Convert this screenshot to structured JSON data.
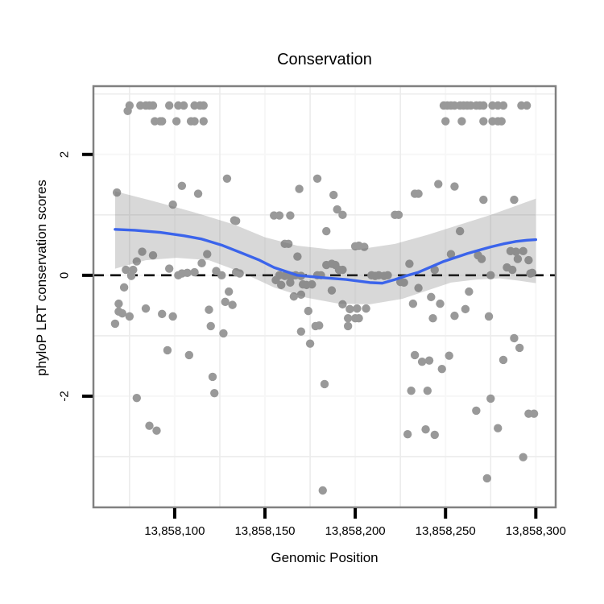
{
  "title": "Conservation",
  "x_axis": {
    "label": "Genomic Position",
    "ticks": [
      {
        "pos": 13858100,
        "label": "13,858,100"
      },
      {
        "pos": 13858150,
        "label": "13,858,150"
      },
      {
        "pos": 13858200,
        "label": "13,858,200"
      },
      {
        "pos": 13858250,
        "label": "13,858,250"
      },
      {
        "pos": 13858300,
        "label": "13,858,300"
      }
    ]
  },
  "y_axis": {
    "label": "phyloP LRT conservation scores",
    "ticks": [
      {
        "value": 2,
        "label": "2"
      },
      {
        "value": 0,
        "label": "0"
      },
      {
        "value": -2,
        "label": "-2"
      }
    ]
  },
  "colors": {
    "point": "#999999",
    "smooth_line": "#3B64EB",
    "confidence_band": "rgba(110,110,110,0.27)",
    "hline": "#000000",
    "panel_border": "#808080",
    "grid_major": "#f7f7f7",
    "grid_minor": "#ececec",
    "tick_mark": "#000000"
  },
  "chart_data": {
    "type": "scatter",
    "title": "Conservation",
    "xlabel": "Genomic Position",
    "ylabel": "phyloP LRT conservation scores",
    "xlim": [
      13858055,
      13858311
    ],
    "ylim": [
      -3.84,
      3.13
    ],
    "x_ticks": [
      13858100,
      13858150,
      13858200,
      13858250,
      13858300
    ],
    "y_ticks": [
      -2,
      0,
      2
    ],
    "grid_minor_x": [
      13858075,
      13858125,
      13858175,
      13858225,
      13858275
    ],
    "grid_minor_y": [
      -3,
      -1,
      1,
      3
    ],
    "grid": "minor-visible",
    "legend": "none",
    "hline": {
      "y": 0,
      "style": "dashed",
      "color": "#000000"
    },
    "points": [
      [
        13858075,
        2.81
      ],
      [
        13858081,
        2.81
      ],
      [
        13858084,
        2.81
      ],
      [
        13858086,
        2.81
      ],
      [
        13858088,
        2.81
      ],
      [
        13858097,
        2.81
      ],
      [
        13858102,
        2.81
      ],
      [
        13858105,
        2.81
      ],
      [
        13858111,
        2.81
      ],
      [
        13858114,
        2.81
      ],
      [
        13858116,
        2.81
      ],
      [
        13858249,
        2.81
      ],
      [
        13858251,
        2.81
      ],
      [
        13858253,
        2.81
      ],
      [
        13858255,
        2.81
      ],
      [
        13858258,
        2.81
      ],
      [
        13858260,
        2.81
      ],
      [
        13858262,
        2.81
      ],
      [
        13858264,
        2.81
      ],
      [
        13858267,
        2.81
      ],
      [
        13858269,
        2.81
      ],
      [
        13858271,
        2.81
      ],
      [
        13858276,
        2.81
      ],
      [
        13858279,
        2.81
      ],
      [
        13858282,
        2.81
      ],
      [
        13858292,
        2.81
      ],
      [
        13858295,
        2.81
      ],
      [
        13858074,
        2.72
      ],
      [
        13858089,
        2.55
      ],
      [
        13858092,
        2.55
      ],
      [
        13858093,
        2.55
      ],
      [
        13858101,
        2.55
      ],
      [
        13858109,
        2.55
      ],
      [
        13858111,
        2.55
      ],
      [
        13858116,
        2.55
      ],
      [
        13858250,
        2.55
      ],
      [
        13858259,
        2.55
      ],
      [
        13858271,
        2.55
      ],
      [
        13858276,
        2.55
      ],
      [
        13858279,
        2.55
      ],
      [
        13858281,
        2.55
      ],
      [
        13858068,
        1.37
      ],
      [
        13858104,
        1.48
      ],
      [
        13858113,
        1.35
      ],
      [
        13858099,
        1.17
      ],
      [
        13858129,
        1.6
      ],
      [
        13858133,
        0.91
      ],
      [
        13858134,
        0.9
      ],
      [
        13858082,
        0.39
      ],
      [
        13858088,
        0.33
      ],
      [
        13858079,
        0.23
      ],
      [
        13858118,
        0.35
      ],
      [
        13858115,
        0.2
      ],
      [
        13858073,
        0.09
      ],
      [
        13858077,
        0.09
      ],
      [
        13858097,
        0.11
      ],
      [
        13858102,
        0
      ],
      [
        13858104,
        0.03
      ],
      [
        13858107,
        0.04
      ],
      [
        13858111,
        0.05
      ],
      [
        13858123,
        0.07
      ],
      [
        13858126,
        0
      ],
      [
        13858134,
        0.05
      ],
      [
        13858136,
        0.03
      ],
      [
        13858076,
        -0.01
      ],
      [
        13858072,
        -0.2
      ],
      [
        13858130,
        -0.27
      ],
      [
        13858179,
        1.6
      ],
      [
        13858169,
        1.43
      ],
      [
        13858188,
        1.33
      ],
      [
        13858190,
        1.09
      ],
      [
        13858193,
        1.0
      ],
      [
        13858155,
        0.99
      ],
      [
        13858158,
        0.99
      ],
      [
        13858164,
        0.99
      ],
      [
        13858222,
        1.0
      ],
      [
        13858224,
        1.0
      ],
      [
        13858184,
        0.73
      ],
      [
        13858161,
        0.52
      ],
      [
        13858163,
        0.52
      ],
      [
        13858200,
        0.48
      ],
      [
        13858202,
        0.49
      ],
      [
        13858205,
        0.47
      ],
      [
        13858168,
        0.31
      ],
      [
        13858184,
        0.17
      ],
      [
        13858187,
        0.19
      ],
      [
        13858189,
        0.17
      ],
      [
        13858191,
        0.09
      ],
      [
        13858193,
        0.09
      ],
      [
        13858158,
        0
      ],
      [
        13858161,
        -0.01
      ],
      [
        13858163,
        0
      ],
      [
        13858165,
        -0.01
      ],
      [
        13858167,
        0
      ],
      [
        13858170,
        -0.01
      ],
      [
        13858179,
        0
      ],
      [
        13858181,
        0
      ],
      [
        13858209,
        0
      ],
      [
        13858211,
        -0.01
      ],
      [
        13858213,
        0
      ],
      [
        13858216,
        -0.01
      ],
      [
        13858218,
        0
      ],
      [
        13858156,
        -0.08
      ],
      [
        13858159,
        -0.16
      ],
      [
        13858164,
        -0.12
      ],
      [
        13858171,
        -0.15
      ],
      [
        13858173,
        -0.16
      ],
      [
        13858176,
        -0.15
      ],
      [
        13858166,
        -0.35
      ],
      [
        13858170,
        -0.32
      ],
      [
        13858187,
        -0.25
      ],
      [
        13858225,
        -0.11
      ],
      [
        13858246,
        1.51
      ],
      [
        13858255,
        1.47
      ],
      [
        13858233,
        1.35
      ],
      [
        13858235,
        1.35
      ],
      [
        13858271,
        1.25
      ],
      [
        13858288,
        1.25
      ],
      [
        13858258,
        0.73
      ],
      [
        13858253,
        0.35
      ],
      [
        13858268,
        0.33
      ],
      [
        13858270,
        0.27
      ],
      [
        13858286,
        0.4
      ],
      [
        13858289,
        0.39
      ],
      [
        13858293,
        0.4
      ],
      [
        13858290,
        0.27
      ],
      [
        13858296,
        0.25
      ],
      [
        13858284,
        0.13
      ],
      [
        13858287,
        0.09
      ],
      [
        13858230,
        0.19
      ],
      [
        13858244,
        0.09
      ],
      [
        13858275,
        0
      ],
      [
        13858297,
        0.03
      ],
      [
        13858298,
        0.04
      ],
      [
        13858227,
        -0.12
      ],
      [
        13858235,
        -0.21
      ],
      [
        13858242,
        -0.36
      ],
      [
        13858263,
        -0.27
      ],
      [
        13858069,
        -0.47
      ],
      [
        13858069,
        -0.6
      ],
      [
        13858071,
        -0.63
      ],
      [
        13858075,
        -0.68
      ],
      [
        13858067,
        -0.8
      ],
      [
        13858084,
        -0.55
      ],
      [
        13858093,
        -0.64
      ],
      [
        13858099,
        -0.68
      ],
      [
        13858119,
        -0.57
      ],
      [
        13858128,
        -0.44
      ],
      [
        13858132,
        -0.49
      ],
      [
        13858120,
        -0.84
      ],
      [
        13858127,
        -0.96
      ],
      [
        13858096,
        -1.24
      ],
      [
        13858108,
        -1.32
      ],
      [
        13858121,
        -1.68
      ],
      [
        13858122,
        -1.95
      ],
      [
        13858079,
        -2.03
      ],
      [
        13858086,
        -2.49
      ],
      [
        13858090,
        -2.57
      ],
      [
        13858174,
        -0.59
      ],
      [
        13858193,
        -0.48
      ],
      [
        13858197,
        -0.56
      ],
      [
        13858201,
        -0.55
      ],
      [
        13858206,
        -0.55
      ],
      [
        13858196,
        -0.71
      ],
      [
        13858200,
        -0.71
      ],
      [
        13858202,
        -0.71
      ],
      [
        13858196,
        -0.84
      ],
      [
        13858178,
        -0.84
      ],
      [
        13858180,
        -0.83
      ],
      [
        13858170,
        -0.93
      ],
      [
        13858175,
        -1.13
      ],
      [
        13858183,
        -1.8
      ],
      [
        13858182,
        -3.56
      ],
      [
        13858232,
        -0.47
      ],
      [
        13858247,
        -0.47
      ],
      [
        13858255,
        -0.67
      ],
      [
        13858261,
        -0.56
      ],
      [
        13858243,
        -0.71
      ],
      [
        13858274,
        -0.68
      ],
      [
        13858288,
        -1.04
      ],
      [
        13858291,
        -1.2
      ],
      [
        13858233,
        -1.32
      ],
      [
        13858237,
        -1.43
      ],
      [
        13858241,
        -1.41
      ],
      [
        13858252,
        -1.33
      ],
      [
        13858248,
        -1.55
      ],
      [
        13858282,
        -1.4
      ],
      [
        13858231,
        -1.91
      ],
      [
        13858240,
        -1.91
      ],
      [
        13858275,
        -2.04
      ],
      [
        13858267,
        -2.24
      ],
      [
        13858296,
        -2.29
      ],
      [
        13858299,
        -2.29
      ],
      [
        13858279,
        -2.53
      ],
      [
        13858229,
        -2.63
      ],
      [
        13858239,
        -2.55
      ],
      [
        13858244,
        -2.64
      ],
      [
        13858293,
        -3.01
      ],
      [
        13858273,
        -3.36
      ]
    ],
    "smooth_line": [
      [
        13858067,
        0.76
      ],
      [
        13858078,
        0.745
      ],
      [
        13858092,
        0.71
      ],
      [
        13858105,
        0.655
      ],
      [
        13858115,
        0.6
      ],
      [
        13858126,
        0.5
      ],
      [
        13858137,
        0.37
      ],
      [
        13858147,
        0.25
      ],
      [
        13858155,
        0.13
      ],
      [
        13858162,
        0.06
      ],
      [
        13858168,
        0.0
      ],
      [
        13858175,
        -0.02
      ],
      [
        13858182,
        -0.04
      ],
      [
        13858195,
        -0.07
      ],
      [
        13858208,
        -0.12
      ],
      [
        13858215,
        -0.13
      ],
      [
        13858222,
        -0.07
      ],
      [
        13858228,
        -0.01
      ],
      [
        13858235,
        0.05
      ],
      [
        13858242,
        0.14
      ],
      [
        13858249,
        0.23
      ],
      [
        13858256,
        0.3
      ],
      [
        13858262,
        0.36
      ],
      [
        13858269,
        0.42
      ],
      [
        13858275,
        0.47
      ],
      [
        13858282,
        0.52
      ],
      [
        13858289,
        0.56
      ],
      [
        13858295,
        0.58
      ],
      [
        13858300,
        0.59
      ]
    ],
    "confidence_band": {
      "upper": [
        [
          13858067,
          1.39
        ],
        [
          13858088,
          1.23
        ],
        [
          13858110,
          1.05
        ],
        [
          13858133,
          0.84
        ],
        [
          13858150,
          0.63
        ],
        [
          13858168,
          0.49
        ],
        [
          13858186,
          0.43
        ],
        [
          13858204,
          0.44
        ],
        [
          13858222,
          0.52
        ],
        [
          13858240,
          0.67
        ],
        [
          13858258,
          0.84
        ],
        [
          13858275,
          1.0
        ],
        [
          13858289,
          1.15
        ],
        [
          13858300,
          1.27
        ]
      ],
      "lower": [
        [
          13858067,
          0.11
        ],
        [
          13858084,
          0.25
        ],
        [
          13858101,
          0.29
        ],
        [
          13858119,
          0.25
        ],
        [
          13858137,
          0.05
        ],
        [
          13858155,
          -0.2
        ],
        [
          13858173,
          -0.37
        ],
        [
          13858191,
          -0.47
        ],
        [
          13858208,
          -0.48
        ],
        [
          13858226,
          -0.39
        ],
        [
          13858240,
          -0.25
        ],
        [
          13858253,
          -0.12
        ],
        [
          13858267,
          -0.07
        ],
        [
          13858280,
          -0.05
        ],
        [
          13858291,
          -0.09
        ],
        [
          13858300,
          -0.13
        ]
      ]
    }
  }
}
